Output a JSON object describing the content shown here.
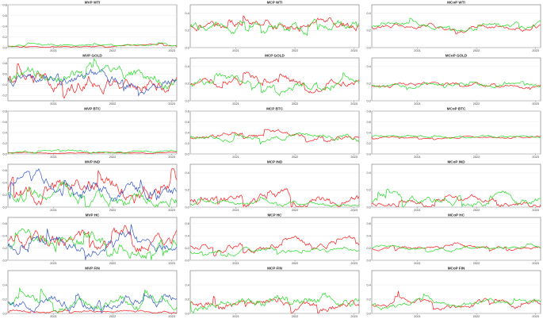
{
  "figure": {
    "colors": {
      "s1": "#ff1a1a",
      "s2": "#22dd22",
      "s3": "#3355cc",
      "frame": "#555555",
      "grid": "#e6e6e6"
    }
  },
  "chart_data": [
    {
      "type": "line",
      "title": "MVP WTI",
      "x_tick_labels": [
        "2021",
        "2022",
        "2023"
      ],
      "y_tick_labels": [
        "0.0",
        "0.2",
        "0.4",
        "0.6",
        "0.8"
      ],
      "ylim": [
        0,
        0.8
      ],
      "x_range": [
        "2020-03",
        "2023-02"
      ],
      "grid": true,
      "series": [
        {
          "color": "#ff1a1a",
          "level": 0.03,
          "amp": 0.03,
          "seed": 11
        },
        {
          "color": "#22dd22",
          "level": 0.04,
          "amp": 0.04,
          "seed": 12
        }
      ]
    },
    {
      "type": "line",
      "title": "MCP WTI",
      "x_tick_labels": [
        "2021",
        "2022",
        "2023"
      ],
      "y_tick_labels": [
        "0.0",
        "0.2",
        "0.4"
      ],
      "ylim": [
        0,
        0.5
      ],
      "x_range": [
        "2020-03",
        "2023-02"
      ],
      "grid": true,
      "series": [
        {
          "color": "#ff1a1a",
          "level": 0.28,
          "amp": 0.12,
          "seed": 21
        },
        {
          "color": "#22dd22",
          "level": 0.26,
          "amp": 0.12,
          "seed": 22
        }
      ]
    },
    {
      "type": "line",
      "title": "MCoP WTI",
      "x_tick_labels": [
        "2021",
        "2022",
        "2023"
      ],
      "y_tick_labels": [
        "0.0",
        "0.2",
        "0.4"
      ],
      "ylim": [
        0,
        0.5
      ],
      "x_range": [
        "2020-03",
        "2023-02"
      ],
      "grid": true,
      "series": [
        {
          "color": "#ff1a1a",
          "level": 0.25,
          "amp": 0.06,
          "seed": 31
        },
        {
          "color": "#22dd22",
          "level": 0.25,
          "amp": 0.06,
          "seed": 32
        }
      ]
    },
    {
      "type": "line",
      "title": "MVP GOLD",
      "x_tick_labels": [
        "2021",
        "2022",
        "2023"
      ],
      "y_tick_labels": [
        "0.2",
        "0.4",
        "0.6",
        "0.8"
      ],
      "ylim": [
        0.1,
        0.9
      ],
      "x_range": [
        "2020-03",
        "2023-02"
      ],
      "grid": true,
      "series": [
        {
          "color": "#ff1a1a",
          "level": 0.5,
          "amp": 0.3,
          "seed": 41
        },
        {
          "color": "#22dd22",
          "level": 0.55,
          "amp": 0.25,
          "seed": 42
        },
        {
          "color": "#3355cc",
          "level": 0.55,
          "amp": 0.22,
          "seed": 43
        }
      ]
    },
    {
      "type": "line",
      "title": "MCP GOLD",
      "x_tick_labels": [
        "2021",
        "2022",
        "2023"
      ],
      "y_tick_labels": [
        "0.0",
        "0.2",
        "0.4"
      ],
      "ylim": [
        0,
        0.5
      ],
      "x_range": [
        "2020-03",
        "2023-02"
      ],
      "grid": true,
      "series": [
        {
          "color": "#ff1a1a",
          "level": 0.2,
          "amp": 0.1,
          "seed": 51
        },
        {
          "color": "#22dd22",
          "level": 0.21,
          "amp": 0.1,
          "seed": 52
        }
      ]
    },
    {
      "type": "line",
      "title": "MCoP GOLD",
      "x_tick_labels": [
        "2021",
        "2022",
        "2023"
      ],
      "y_tick_labels": [
        "0.0",
        "0.2",
        "0.4"
      ],
      "ylim": [
        0,
        0.5
      ],
      "x_range": [
        "2020-03",
        "2023-02"
      ],
      "grid": true,
      "series": [
        {
          "color": "#ff1a1a",
          "level": 0.18,
          "amp": 0.05,
          "seed": 61
        },
        {
          "color": "#22dd22",
          "level": 0.19,
          "amp": 0.05,
          "seed": 62
        }
      ]
    },
    {
      "type": "line",
      "title": "MVP BTC",
      "x_tick_labels": [
        "2021",
        "2022",
        "2023"
      ],
      "y_tick_labels": [
        "0.0",
        "0.2",
        "0.4",
        "0.6",
        "0.8"
      ],
      "ylim": [
        0,
        0.8
      ],
      "x_range": [
        "2020-03",
        "2023-02"
      ],
      "grid": true,
      "series": [
        {
          "color": "#ff1a1a",
          "level": 0.02,
          "amp": 0.015,
          "seed": 71
        },
        {
          "color": "#22dd22",
          "level": 0.04,
          "amp": 0.05,
          "seed": 72
        }
      ]
    },
    {
      "type": "line",
      "title": "MCP BTC",
      "x_tick_labels": [
        "2021",
        "2022",
        "2023"
      ],
      "y_tick_labels": [
        "0.0",
        "0.2",
        "0.4",
        "0.6",
        "0.8"
      ],
      "ylim": [
        0,
        0.8
      ],
      "x_range": [
        "2020-03",
        "2023-02"
      ],
      "grid": true,
      "series": [
        {
          "color": "#ff1a1a",
          "level": 0.32,
          "amp": 0.1,
          "seed": 81
        },
        {
          "color": "#22dd22",
          "level": 0.32,
          "amp": 0.1,
          "seed": 82
        }
      ]
    },
    {
      "type": "line",
      "title": "MCoP BTC",
      "x_tick_labels": [
        "2021",
        "2022",
        "2023"
      ],
      "y_tick_labels": [
        "0.0",
        "0.2",
        "0.4",
        "0.6",
        "0.8"
      ],
      "ylim": [
        0,
        0.8
      ],
      "x_range": [
        "2020-03",
        "2023-02"
      ],
      "grid": true,
      "series": [
        {
          "color": "#ff1a1a",
          "level": 0.33,
          "amp": 0.04,
          "seed": 91
        },
        {
          "color": "#22dd22",
          "level": 0.33,
          "amp": 0.04,
          "seed": 92
        }
      ]
    },
    {
      "type": "line",
      "title": "MVP IND",
      "x_tick_labels": [
        "2021",
        "2022",
        "2023"
      ],
      "y_tick_labels": [
        "0.0",
        "0.2",
        "0.4",
        "0.6"
      ],
      "ylim": [
        0,
        0.7
      ],
      "x_range": [
        "2020-03",
        "2023-02"
      ],
      "grid": true,
      "series": [
        {
          "color": "#ff1a1a",
          "level": 0.3,
          "amp": 0.3,
          "seed": 101
        },
        {
          "color": "#22dd22",
          "level": 0.25,
          "amp": 0.25,
          "seed": 102
        },
        {
          "color": "#3355cc",
          "level": 0.25,
          "amp": 0.25,
          "seed": 103
        }
      ]
    },
    {
      "type": "line",
      "title": "MCP IND",
      "x_tick_labels": [
        "2021",
        "2022",
        "2023"
      ],
      "y_tick_labels": [
        "0.0",
        "0.2",
        "0.4"
      ],
      "ylim": [
        0,
        0.5
      ],
      "x_range": [
        "2020-03",
        "2023-02"
      ],
      "grid": true,
      "series": [
        {
          "color": "#ff1a1a",
          "level": 0.08,
          "amp": 0.12,
          "seed": 111
        },
        {
          "color": "#22dd22",
          "level": 0.04,
          "amp": 0.05,
          "seed": 112
        }
      ]
    },
    {
      "type": "line",
      "title": "MCoP IND",
      "x_tick_labels": [
        "2021",
        "2022",
        "2023"
      ],
      "y_tick_labels": [
        "0.0",
        "0.2",
        "0.4"
      ],
      "ylim": [
        0,
        0.5
      ],
      "x_range": [
        "2020-03",
        "2023-02"
      ],
      "grid": true,
      "series": [
        {
          "color": "#ff1a1a",
          "level": 0.05,
          "amp": 0.08,
          "seed": 121
        },
        {
          "color": "#22dd22",
          "level": 0.08,
          "amp": 0.1,
          "seed": 122
        }
      ]
    },
    {
      "type": "line",
      "title": "MVP HC",
      "x_tick_labels": [
        "2021",
        "2022",
        "2023"
      ],
      "y_tick_labels": [
        "0.0",
        "0.2",
        "0.4",
        "0.6"
      ],
      "ylim": [
        0,
        0.7
      ],
      "x_range": [
        "2020-03",
        "2023-02"
      ],
      "grid": true,
      "series": [
        {
          "color": "#ff1a1a",
          "level": 0.35,
          "amp": 0.25,
          "seed": 131
        },
        {
          "color": "#22dd22",
          "level": 0.3,
          "amp": 0.25,
          "seed": 132
        },
        {
          "color": "#3355cc",
          "level": 0.25,
          "amp": 0.2,
          "seed": 133
        }
      ]
    },
    {
      "type": "line",
      "title": "MCP HC",
      "x_tick_labels": [
        "2021",
        "2022",
        "2023"
      ],
      "y_tick_labels": [
        "0.0",
        "0.2",
        "0.4",
        "0.6"
      ],
      "ylim": [
        0,
        0.7
      ],
      "x_range": [
        "2020-03",
        "2023-02"
      ],
      "grid": true,
      "series": [
        {
          "color": "#ff1a1a",
          "level": 0.25,
          "amp": 0.12,
          "seed": 141
        },
        {
          "color": "#22dd22",
          "level": 0.15,
          "amp": 0.08,
          "seed": 142
        }
      ]
    },
    {
      "type": "line",
      "title": "MCoP HC",
      "x_tick_labels": [
        "2021",
        "2022",
        "2023"
      ],
      "y_tick_labels": [
        "0.0",
        "0.2",
        "0.4",
        "0.6"
      ],
      "ylim": [
        0,
        0.7
      ],
      "x_range": [
        "2020-03",
        "2023-02"
      ],
      "grid": true,
      "series": [
        {
          "color": "#ff1a1a",
          "level": 0.2,
          "amp": 0.06,
          "seed": 151
        },
        {
          "color": "#22dd22",
          "level": 0.2,
          "amp": 0.06,
          "seed": 152
        }
      ]
    },
    {
      "type": "line",
      "title": "MVP FIN",
      "x_tick_labels": [
        "2021",
        "2022",
        "2023"
      ],
      "y_tick_labels": [
        "0.0",
        "0.2",
        "0.4"
      ],
      "ylim": [
        0,
        0.6
      ],
      "x_range": [
        "2020-03",
        "2023-02"
      ],
      "grid": true,
      "series": [
        {
          "color": "#ff1a1a",
          "level": 0.03,
          "amp": 0.04,
          "seed": 161
        },
        {
          "color": "#22dd22",
          "level": 0.15,
          "amp": 0.15,
          "seed": 162
        },
        {
          "color": "#3355cc",
          "level": 0.18,
          "amp": 0.15,
          "seed": 163
        }
      ]
    },
    {
      "type": "line",
      "title": "MCP FIN",
      "x_tick_labels": [
        "2021",
        "2022",
        "2023"
      ],
      "y_tick_labels": [
        "0.0",
        "0.2",
        "0.4"
      ],
      "ylim": [
        0,
        0.6
      ],
      "x_range": [
        "2020-03",
        "2023-02"
      ],
      "grid": true,
      "series": [
        {
          "color": "#ff1a1a",
          "level": 0.15,
          "amp": 0.12,
          "seed": 171
        },
        {
          "color": "#22dd22",
          "level": 0.2,
          "amp": 0.15,
          "seed": 172
        }
      ]
    },
    {
      "type": "line",
      "title": "MCoP FIN",
      "x_tick_labels": [
        "2021",
        "2022",
        "2023"
      ],
      "y_tick_labels": [
        "0.0",
        "0.2",
        "0.4"
      ],
      "ylim": [
        0,
        0.6
      ],
      "x_range": [
        "2020-03",
        "2023-02"
      ],
      "grid": true,
      "series": [
        {
          "color": "#ff1a1a",
          "level": 0.12,
          "amp": 0.08,
          "seed": 181
        },
        {
          "color": "#22dd22",
          "level": 0.13,
          "amp": 0.08,
          "seed": 182
        }
      ]
    }
  ]
}
